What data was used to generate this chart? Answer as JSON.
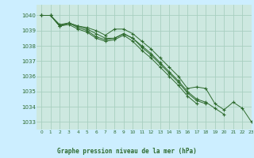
{
  "title": "Graphe pression niveau de la mer (hPa)",
  "background_color": "#cceeff",
  "plot_bg_color": "#cde8e0",
  "grid_color": "#a8cfc0",
  "line_color": "#2d6a2d",
  "text_color": "#2d6a2d",
  "xlim": [
    -0.5,
    23
  ],
  "ylim": [
    1032.5,
    1040.7
  ],
  "yticks": [
    1033,
    1034,
    1035,
    1036,
    1037,
    1038,
    1039,
    1040
  ],
  "xticks": [
    0,
    1,
    2,
    3,
    4,
    5,
    6,
    7,
    8,
    9,
    10,
    11,
    12,
    13,
    14,
    15,
    16,
    17,
    18,
    19,
    20,
    21,
    22,
    23
  ],
  "series": [
    [
      1040.0,
      1040.0,
      1039.3,
      1039.5,
      1039.3,
      1039.2,
      1039.0,
      1038.7,
      1039.1,
      1039.1,
      1038.8,
      1038.3,
      1037.8,
      1037.2,
      1036.6,
      1036.0,
      1035.2,
      1035.3,
      1035.2,
      1034.2,
      1033.8,
      1034.3,
      1033.9,
      1033.0
    ],
    [
      1040.0,
      1040.0,
      1039.3,
      1039.5,
      1039.3,
      1039.1,
      1038.8,
      1038.5,
      1038.5,
      1038.8,
      1038.5,
      1038.0,
      1037.5,
      1036.9,
      1036.3,
      1035.7,
      1035.0,
      1034.5,
      1034.3,
      1033.9,
      1033.5,
      null,
      null,
      null
    ],
    [
      1040.0,
      1040.0,
      1039.4,
      1039.5,
      1039.2,
      1039.0,
      1038.6,
      1038.4,
      1038.5,
      1038.8,
      1038.5,
      1037.9,
      1037.4,
      1036.8,
      1036.2,
      1035.6,
      1034.9,
      1034.4,
      1034.2,
      null,
      null,
      null,
      null,
      null
    ],
    [
      1040.0,
      1040.0,
      1039.3,
      1039.4,
      1039.1,
      1038.9,
      1038.5,
      1038.3,
      1038.4,
      1038.7,
      1038.3,
      1037.7,
      1037.2,
      1036.6,
      1036.0,
      1035.4,
      1034.7,
      1034.2,
      null,
      null,
      null,
      null,
      null,
      null
    ]
  ]
}
